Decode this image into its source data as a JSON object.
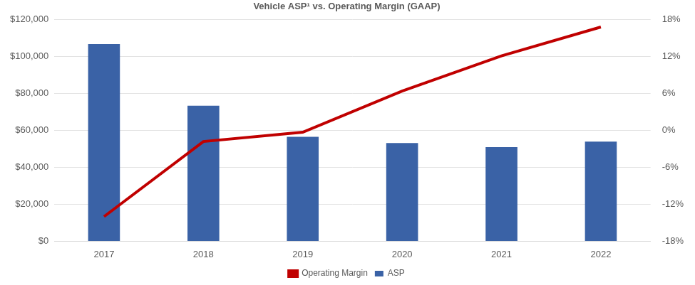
{
  "chart_data": {
    "type": "bar",
    "title": "Vehicle ASP¹ vs. Operating Margin (GAAP)",
    "categories": [
      "2017",
      "2018",
      "2019",
      "2020",
      "2021",
      "2022"
    ],
    "series": [
      {
        "name": "ASP",
        "type": "bar",
        "color": "#3a62a6",
        "values": [
          106800,
          73400,
          56500,
          53200,
          51000,
          53900
        ]
      },
      {
        "name": "Operating Margin",
        "type": "line",
        "color": "#c00000",
        "axis": "y2",
        "values": [
          -14.0,
          -1.8,
          -0.3,
          6.4,
          12.1,
          16.8
        ]
      }
    ],
    "ylim": [
      0,
      120000
    ],
    "yticks": [
      {
        "value": 0,
        "label": "$0"
      },
      {
        "value": 20000,
        "label": "$20,000"
      },
      {
        "value": 40000,
        "label": "$40,000"
      },
      {
        "value": 60000,
        "label": "$60,000"
      },
      {
        "value": 80000,
        "label": "$80,000"
      },
      {
        "value": 100000,
        "label": "$100,000"
      },
      {
        "value": 120000,
        "label": "$120,000"
      }
    ],
    "y2lim": [
      -18,
      18
    ],
    "y2ticks": [
      {
        "value": -18,
        "label": "-18%"
      },
      {
        "value": -12,
        "label": "-12%"
      },
      {
        "value": -6,
        "label": "-6%"
      },
      {
        "value": 0,
        "label": "0%"
      },
      {
        "value": 6,
        "label": "6%"
      },
      {
        "value": 12,
        "label": "12%"
      },
      {
        "value": 18,
        "label": "18%"
      }
    ],
    "grid": true,
    "legend": "bottom"
  }
}
